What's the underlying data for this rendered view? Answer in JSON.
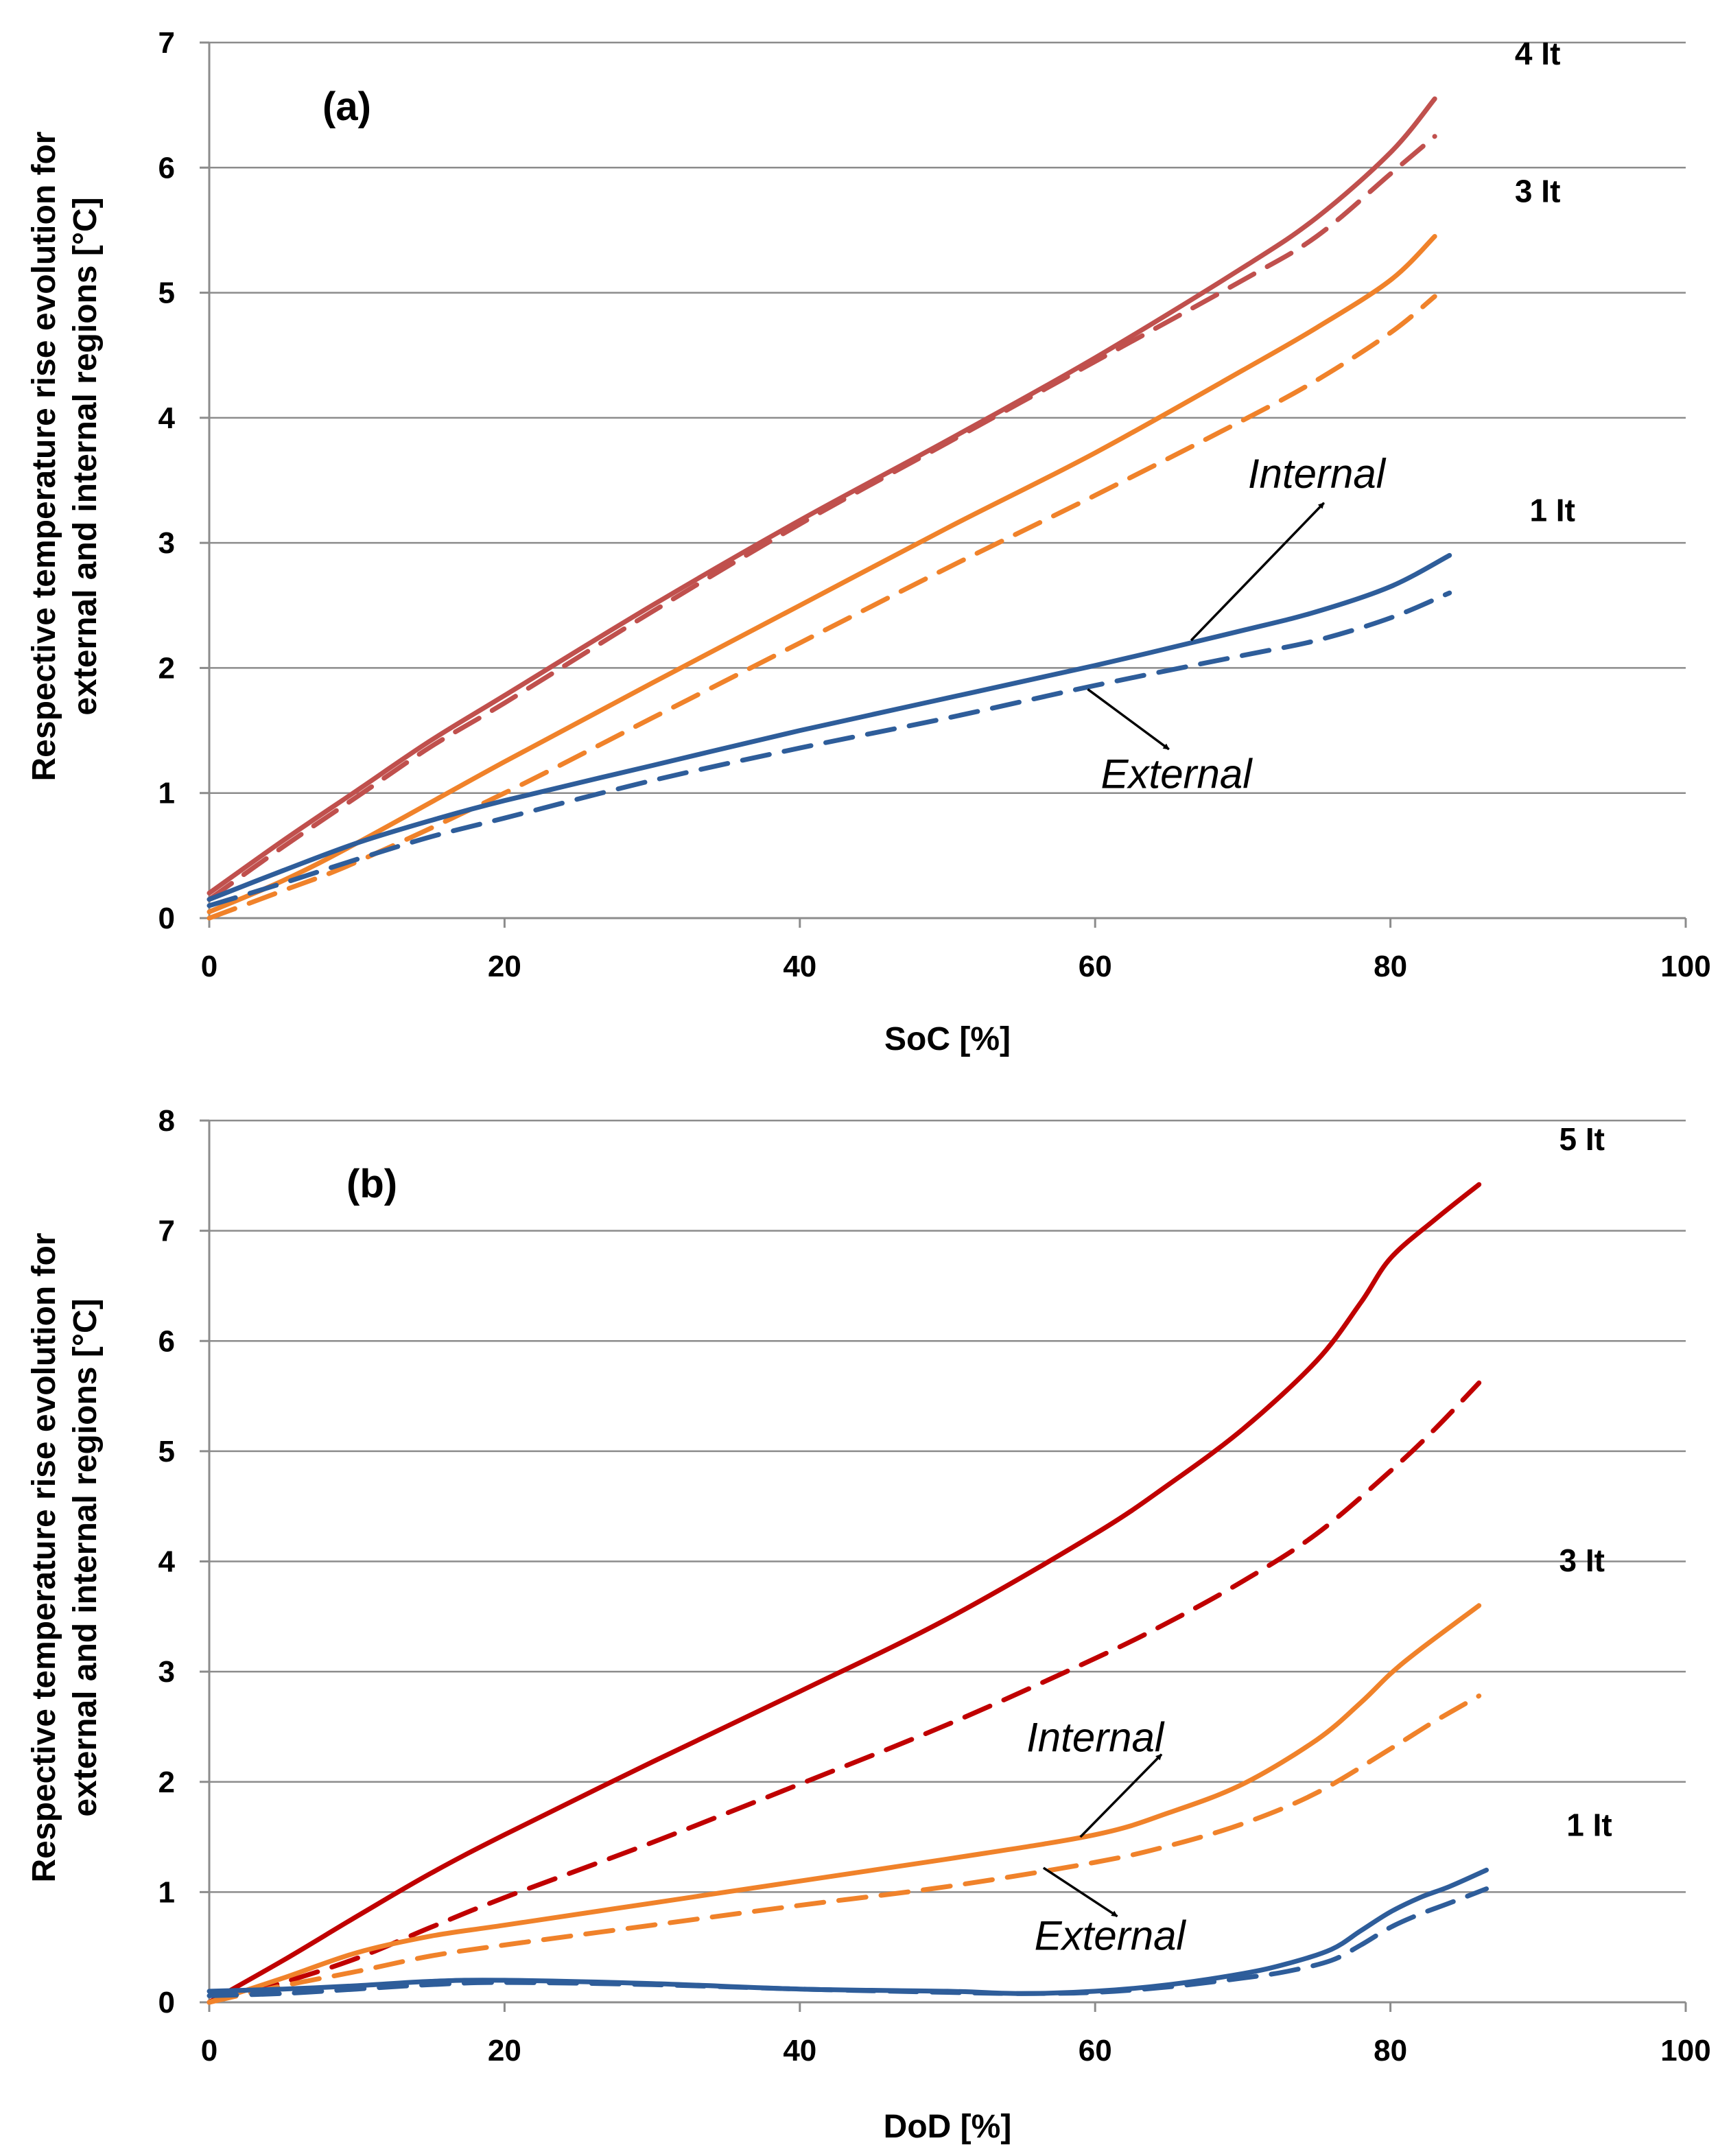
{
  "chart_data": [
    {
      "type": "line",
      "panel_label": "(a)",
      "xlabel": "SoC [%]",
      "ylabel_lines": [
        "Respective temperature rise evolution for",
        "external and internal regions  [°C]"
      ],
      "xlim": [
        0,
        100
      ],
      "ylim": [
        0,
        7
      ],
      "xticks": [
        0,
        20,
        40,
        60,
        80,
        100
      ],
      "yticks": [
        0,
        1,
        2,
        3,
        4,
        5,
        6,
        7
      ],
      "grid": "horizontal",
      "series": [
        {
          "name": "4 It internal",
          "rate": "4 It",
          "region": "Internal",
          "style": "solid",
          "color": "#c0504d",
          "x": [
            0,
            5,
            10,
            15,
            20,
            30,
            40,
            50,
            60,
            70,
            75,
            80,
            83
          ],
          "y": [
            0.2,
            0.62,
            1.02,
            1.42,
            1.78,
            2.5,
            3.18,
            3.82,
            4.48,
            5.2,
            5.6,
            6.12,
            6.55
          ]
        },
        {
          "name": "4 It external",
          "rate": "4 It",
          "region": "External",
          "style": "dashed",
          "color": "#c0504d",
          "x": [
            0,
            5,
            10,
            15,
            20,
            30,
            40,
            50,
            60,
            70,
            75,
            80,
            83
          ],
          "y": [
            0.15,
            0.57,
            0.97,
            1.37,
            1.72,
            2.45,
            3.15,
            3.8,
            4.45,
            5.1,
            5.45,
            5.95,
            6.25
          ]
        },
        {
          "name": "3 It internal",
          "rate": "3 It",
          "region": "Internal",
          "style": "solid",
          "color": "#f0822a",
          "x": [
            0,
            5,
            10,
            20,
            30,
            40,
            50,
            60,
            70,
            75,
            80,
            83
          ],
          "y": [
            0.05,
            0.3,
            0.6,
            1.25,
            1.88,
            2.5,
            3.12,
            3.72,
            4.38,
            4.72,
            5.1,
            5.45
          ]
        },
        {
          "name": "3 It external",
          "rate": "3 It",
          "region": "External",
          "style": "dashed",
          "color": "#f0822a",
          "x": [
            0,
            5,
            10,
            20,
            30,
            40,
            50,
            60,
            70,
            75,
            80,
            83
          ],
          "y": [
            0.0,
            0.22,
            0.45,
            1.0,
            1.6,
            2.2,
            2.8,
            3.38,
            3.98,
            4.3,
            4.68,
            4.97
          ]
        },
        {
          "name": "1 It internal",
          "rate": "1 It",
          "region": "Internal",
          "style": "solid",
          "color": "#2e5d9a",
          "x": [
            0,
            5,
            10,
            15,
            20,
            30,
            40,
            50,
            60,
            70,
            75,
            80,
            84
          ],
          "y": [
            0.15,
            0.38,
            0.6,
            0.78,
            0.94,
            1.22,
            1.5,
            1.76,
            2.02,
            2.3,
            2.45,
            2.65,
            2.9
          ]
        },
        {
          "name": "1 It external",
          "rate": "1 It",
          "region": "External",
          "style": "dashed",
          "color": "#2e5d9a",
          "x": [
            0,
            5,
            10,
            15,
            20,
            30,
            40,
            50,
            60,
            70,
            75,
            80,
            84
          ],
          "y": [
            0.1,
            0.28,
            0.47,
            0.65,
            0.8,
            1.1,
            1.36,
            1.6,
            1.86,
            2.1,
            2.22,
            2.4,
            2.6
          ]
        }
      ],
      "rate_labels": [
        {
          "text": "4 It",
          "series": "4 It internal"
        },
        {
          "text": "3 It",
          "series": "3 It internal"
        },
        {
          "text": "1 It",
          "series": "1 It internal"
        }
      ],
      "annotations": [
        {
          "text": "Internal",
          "series": "1 It internal",
          "arrow_from": [
            66.5,
            2.22
          ],
          "arrow_to": [
            75.5,
            3.32
          ],
          "text_at": [
            75,
            3.55
          ]
        },
        {
          "text": "External",
          "series": "1 It external",
          "arrow_from": [
            59.5,
            1.83
          ],
          "arrow_to": [
            65,
            1.35
          ],
          "text_at": [
            65.5,
            1.15
          ]
        }
      ]
    },
    {
      "type": "line",
      "panel_label": "(b)",
      "xlabel": "DoD [%]",
      "ylabel_lines": [
        "Respective temperature rise evolution for",
        "external and internal regions [°C]"
      ],
      "xlim": [
        0,
        100
      ],
      "ylim": [
        0,
        8
      ],
      "xticks": [
        0,
        20,
        40,
        60,
        80,
        100
      ],
      "yticks": [
        0,
        1,
        2,
        3,
        4,
        5,
        6,
        7,
        8
      ],
      "grid": "horizontal",
      "series": [
        {
          "name": "5 It internal",
          "rate": "5 It",
          "region": "Internal",
          "style": "solid",
          "color": "#c00000",
          "x": [
            0,
            5,
            10,
            15,
            20,
            30,
            40,
            50,
            60,
            65,
            70,
            75,
            78,
            80,
            83,
            86
          ],
          "y": [
            0.0,
            0.38,
            0.78,
            1.17,
            1.52,
            2.18,
            2.82,
            3.48,
            4.25,
            4.7,
            5.2,
            5.82,
            6.35,
            6.75,
            7.1,
            7.42
          ]
        },
        {
          "name": "5 It external",
          "rate": "5 It",
          "region": "External",
          "style": "dashed",
          "color": "#c00000",
          "x": [
            0,
            5,
            10,
            15,
            20,
            30,
            40,
            50,
            60,
            65,
            70,
            75,
            80,
            83,
            86
          ],
          "y": [
            0.0,
            0.18,
            0.4,
            0.68,
            0.95,
            1.45,
            1.98,
            2.52,
            3.12,
            3.45,
            3.82,
            4.25,
            4.82,
            5.2,
            5.62
          ]
        },
        {
          "name": "3 It internal",
          "rate": "3 It",
          "region": "Internal",
          "style": "solid",
          "color": "#f0822a",
          "x": [
            0,
            5,
            10,
            15,
            20,
            30,
            40,
            50,
            60,
            65,
            70,
            75,
            78,
            80,
            82,
            86
          ],
          "y": [
            0.0,
            0.22,
            0.45,
            0.6,
            0.7,
            0.9,
            1.1,
            1.3,
            1.52,
            1.72,
            1.98,
            2.38,
            2.72,
            2.98,
            3.2,
            3.6
          ]
        },
        {
          "name": "3 It external",
          "rate": "3 It",
          "region": "External",
          "style": "dashed",
          "color": "#f0822a",
          "x": [
            0,
            5,
            10,
            15,
            20,
            30,
            40,
            50,
            60,
            65,
            70,
            75,
            80,
            83,
            86
          ],
          "y": [
            0.0,
            0.15,
            0.28,
            0.42,
            0.52,
            0.7,
            0.88,
            1.05,
            1.27,
            1.42,
            1.62,
            1.9,
            2.3,
            2.55,
            2.78
          ]
        },
        {
          "name": "1 It internal",
          "rate": "1 It",
          "region": "Internal",
          "style": "solid",
          "color": "#2e5d9a",
          "x": [
            0,
            5,
            10,
            15,
            20,
            30,
            40,
            50,
            55,
            60,
            65,
            70,
            73,
            76,
            78,
            80,
            82,
            84,
            86.5
          ],
          "y": [
            0.1,
            0.12,
            0.15,
            0.19,
            0.2,
            0.17,
            0.12,
            0.1,
            0.08,
            0.1,
            0.16,
            0.26,
            0.35,
            0.48,
            0.65,
            0.82,
            0.95,
            1.05,
            1.2
          ]
        },
        {
          "name": "1 It external",
          "rate": "1 It",
          "region": "External",
          "style": "dashed",
          "color": "#2e5d9a",
          "x": [
            0,
            5,
            10,
            15,
            20,
            30,
            40,
            50,
            55,
            60,
            65,
            70,
            73,
            76,
            78,
            80,
            82,
            84,
            86.5
          ],
          "y": [
            0.06,
            0.08,
            0.12,
            0.16,
            0.18,
            0.16,
            0.12,
            0.09,
            0.08,
            0.09,
            0.14,
            0.22,
            0.28,
            0.38,
            0.52,
            0.68,
            0.8,
            0.9,
            1.03
          ]
        }
      ],
      "rate_labels": [
        {
          "text": "5 It",
          "series": "5 It internal"
        },
        {
          "text": "3 It",
          "series": "3 It internal"
        },
        {
          "text": "1 It",
          "series": "1 It internal"
        }
      ],
      "annotations": [
        {
          "text": "Internal",
          "series": "3 It internal",
          "arrow_from": [
            59,
            1.5
          ],
          "arrow_to": [
            64.5,
            2.25
          ],
          "text_at": [
            60,
            2.4
          ]
        },
        {
          "text": "External",
          "series": "3 It external",
          "arrow_from": [
            56.5,
            1.22
          ],
          "arrow_to": [
            61.5,
            0.78
          ],
          "text_at": [
            61,
            0.6
          ]
        }
      ]
    }
  ]
}
